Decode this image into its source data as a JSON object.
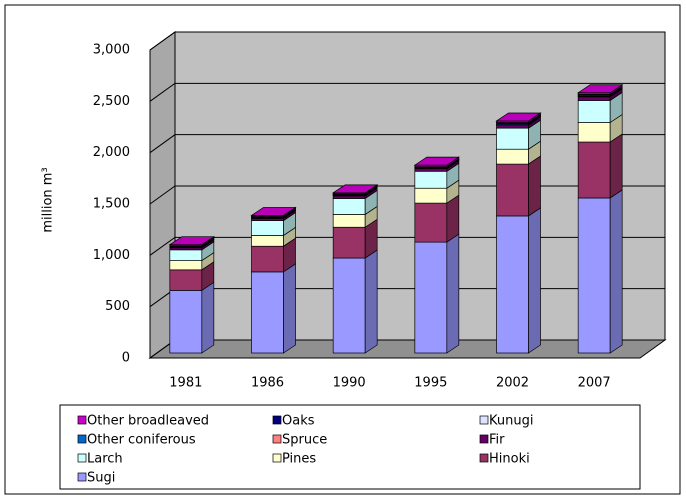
{
  "chart_data": {
    "type": "bar",
    "stacked": true,
    "three_d": true,
    "y_label": "million m³",
    "categories": [
      "1981",
      "1986",
      "1990",
      "1995",
      "2002",
      "2007"
    ],
    "series": [
      {
        "name": "Sugi",
        "color": "#9999ff",
        "values": [
          610,
          790,
          925,
          1080,
          1335,
          1510
        ]
      },
      {
        "name": "Hinoki",
        "color": "#993366",
        "values": [
          200,
          250,
          300,
          380,
          505,
          545
        ]
      },
      {
        "name": "Pines",
        "color": "#ffffcc",
        "values": [
          90,
          105,
          125,
          145,
          145,
          190
        ]
      },
      {
        "name": "Larch",
        "color": "#ccffff",
        "values": [
          105,
          145,
          155,
          165,
          205,
          215
        ]
      },
      {
        "name": "Fir",
        "color": "#660066",
        "values": [
          20,
          20,
          25,
          25,
          30,
          35
        ]
      },
      {
        "name": "Spruce",
        "color": "#ff8080",
        "values": [
          5,
          5,
          5,
          5,
          5,
          5
        ]
      },
      {
        "name": "Other coniferous",
        "color": "#0066cc",
        "values": [
          5,
          5,
          5,
          5,
          10,
          10
        ]
      },
      {
        "name": "Kunugi",
        "color": "#dde4ff",
        "values": [
          5,
          5,
          5,
          5,
          5,
          5
        ]
      },
      {
        "name": "Oaks",
        "color": "#000080",
        "values": [
          5,
          5,
          5,
          5,
          5,
          5
        ]
      },
      {
        "name": "Other broadleaved",
        "color": "#cc00cc",
        "values": [
          10,
          10,
          10,
          15,
          15,
          15
        ]
      }
    ],
    "ylim": [
      0,
      3000
    ],
    "yticks": [
      0,
      500,
      {
        "value": 1000,
        "label": "1,000"
      },
      {
        "value": 1500,
        "label": "1,500"
      },
      {
        "value": 2000,
        "label": "2,000"
      },
      {
        "value": 2500,
        "label": "2,500"
      },
      {
        "value": 3000,
        "label": "3,000"
      }
    ],
    "grid": true,
    "legend_order": [
      9,
      8,
      7,
      6,
      5,
      4,
      3,
      2,
      1,
      0
    ]
  }
}
